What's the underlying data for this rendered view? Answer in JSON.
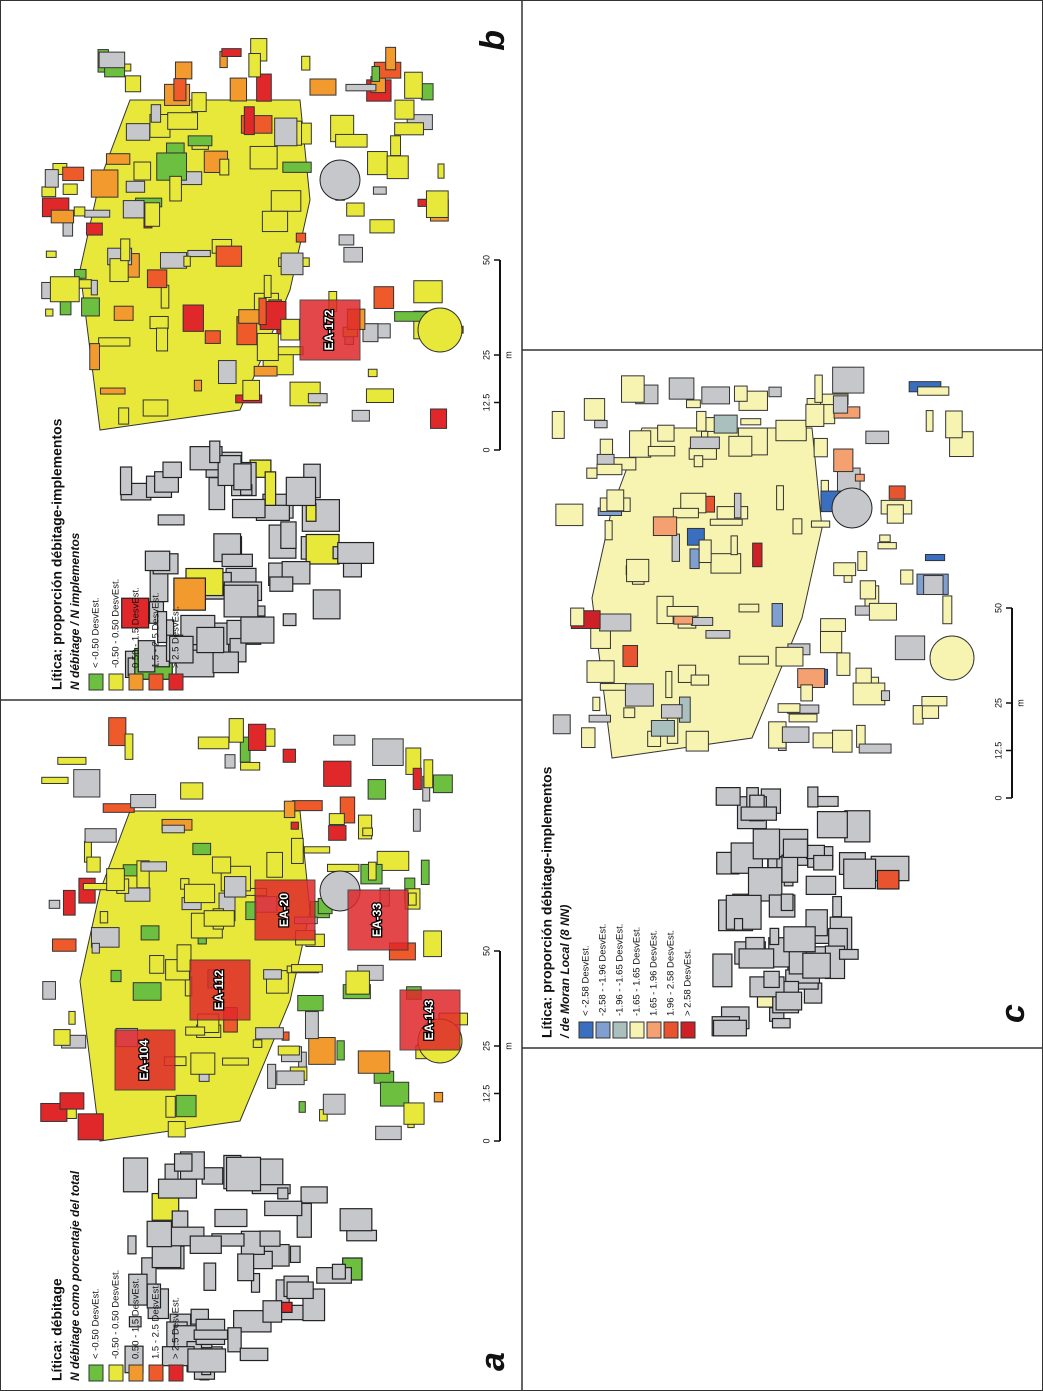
{
  "panels": [
    {
      "letter": "b",
      "title": "Lítica: proporción débitage-implementos",
      "subtitle": "N débitage / N implementos",
      "legend": [
        {
          "label": "< -0.50 DesvEst.",
          "color": "#6cbf3f"
        },
        {
          "label": "-0.50 - 0.50 DesvEst.",
          "color": "#e8e83a"
        },
        {
          "label": "0.50 - 1.5 DesvEst.",
          "color": "#f29a2e"
        },
        {
          "label": "1.5 - 2.5 DesvEst.",
          "color": "#ee5a2a"
        },
        {
          "label": "> 2.5 DesvEst.",
          "color": "#e0282a"
        }
      ],
      "labels": [
        "EA-172"
      ],
      "scale": {
        "ticks": [
          0,
          12.5,
          25,
          50
        ],
        "unit": "m"
      }
    },
    {
      "letter": "a",
      "title": "Lítica: débitage",
      "subtitle": "N débitage como porcentaje del total",
      "legend": [
        {
          "label": "< -0.50 DesvEst.",
          "color": "#6cbf3f"
        },
        {
          "label": "-0.50 - 0.50 DesvEst.",
          "color": "#e8e83a"
        },
        {
          "label": "0.50 - 1.5 DesvEst.",
          "color": "#f29a2e"
        },
        {
          "label": "1.5 - 2.5 DesvEst.",
          "color": "#ee5a2a"
        },
        {
          "label": "> 2.5 DesvEst.",
          "color": "#e0282a"
        }
      ],
      "labels": [
        "EA-104",
        "EA-112",
        "EA-20",
        "EA-33",
        "EA-143"
      ],
      "scale": {
        "ticks": [
          0,
          12.5,
          25,
          50
        ],
        "unit": "m"
      }
    },
    {
      "letter": "c",
      "title": "Lítica: proporción débitage-implementos",
      "subtitle": "/ de Moran Local (8 NN)",
      "legend": [
        {
          "label": "< -2.58 DesvEst.",
          "color": "#3a6fc0"
        },
        {
          "label": "-2.58 - -1.96 DesvEst.",
          "color": "#7f9fd0"
        },
        {
          "label": "-1.96 - -1.65 DesvEst.",
          "color": "#a9c0bf"
        },
        {
          "label": "-1.65 - 1.65 DesvEst.",
          "color": "#f7f3b0"
        },
        {
          "label": "1.65 - 1.96 DesvEst.",
          "color": "#f4a070"
        },
        {
          "label": "1.96 - 2.58 DesvEst.",
          "color": "#e8542f"
        },
        {
          "label": "> 2.58 DesvEst.",
          "color": "#cc2127"
        }
      ],
      "labels": [],
      "scale": {
        "ticks": [
          0,
          12.5,
          25,
          50
        ],
        "unit": "m"
      }
    }
  ]
}
